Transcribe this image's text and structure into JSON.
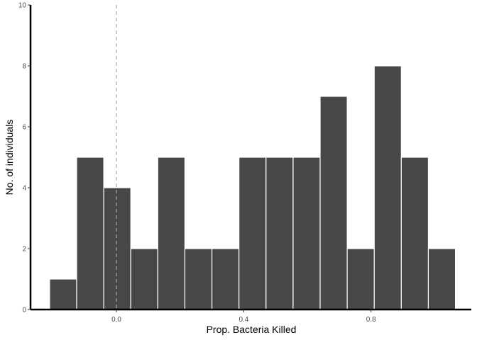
{
  "chart_data": {
    "type": "bar",
    "title": "",
    "xlabel": "Prop. Bacteria Killed",
    "ylabel": "No. of individuals",
    "xlim": [
      -0.27,
      1.115
    ],
    "ylim": [
      0,
      10
    ],
    "bin_width": 0.085,
    "bins": [
      {
        "x_start": -0.21,
        "x_end": -0.125,
        "count": 1
      },
      {
        "x_start": -0.125,
        "x_end": -0.04,
        "count": 5
      },
      {
        "x_start": -0.04,
        "x_end": 0.045,
        "count": 4
      },
      {
        "x_start": 0.045,
        "x_end": 0.13,
        "count": 2
      },
      {
        "x_start": 0.13,
        "x_end": 0.215,
        "count": 5
      },
      {
        "x_start": 0.215,
        "x_end": 0.3,
        "count": 2
      },
      {
        "x_start": 0.3,
        "x_end": 0.385,
        "count": 2
      },
      {
        "x_start": 0.385,
        "x_end": 0.47,
        "count": 5
      },
      {
        "x_start": 0.47,
        "x_end": 0.555,
        "count": 5
      },
      {
        "x_start": 0.555,
        "x_end": 0.64,
        "count": 5
      },
      {
        "x_start": 0.64,
        "x_end": 0.725,
        "count": 7
      },
      {
        "x_start": 0.725,
        "x_end": 0.81,
        "count": 2
      },
      {
        "x_start": 0.81,
        "x_end": 0.895,
        "count": 8
      },
      {
        "x_start": 0.895,
        "x_end": 0.98,
        "count": 5
      },
      {
        "x_start": 0.98,
        "x_end": 1.065,
        "count": 2
      }
    ],
    "x_ticks": [
      {
        "value": 0.0,
        "label": "0.0"
      },
      {
        "value": 0.4,
        "label": "0.4"
      },
      {
        "value": 0.8,
        "label": "0.8"
      }
    ],
    "y_ticks": [
      {
        "value": 0,
        "label": "0"
      },
      {
        "value": 2,
        "label": "2"
      },
      {
        "value": 4,
        "label": "4"
      },
      {
        "value": 6,
        "label": "6"
      },
      {
        "value": 8,
        "label": "8"
      },
      {
        "value": 10,
        "label": "10"
      }
    ],
    "reference_line": {
      "x": 0.0,
      "style": "dashed",
      "color": "#a6a6a6"
    },
    "grid": false,
    "legend": "none",
    "colors": {
      "bar_fill": "#474747",
      "bar_stroke": "#ffffff",
      "axis": "#000000",
      "tick_label": "#4d4d4d"
    }
  }
}
